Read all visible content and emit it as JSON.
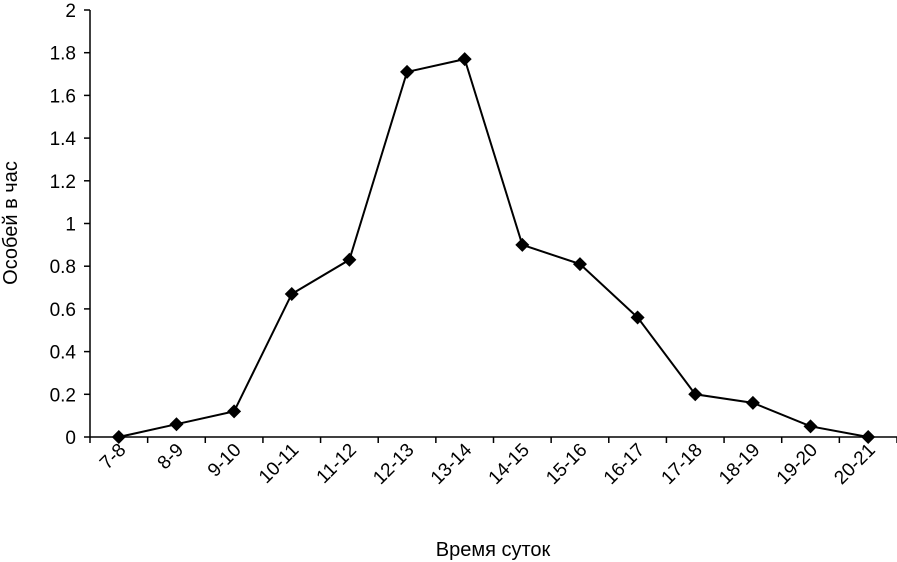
{
  "chart_data": {
    "type": "line",
    "title": "",
    "xlabel": "Время суток",
    "ylabel": "Особей в час",
    "ylim": [
      0,
      2
    ],
    "yticks": [
      "0",
      "0.2",
      "0.4",
      "0.6",
      "0.8",
      "1",
      "1.2",
      "1.4",
      "1.6",
      "1.8",
      "2"
    ],
    "grid": false,
    "legend": "none",
    "categories": [
      "7-8",
      "8-9",
      "9-10",
      "10-11",
      "11-12",
      "12-13",
      "13-14",
      "14-15",
      "15-16",
      "16-17",
      "17-18",
      "18-19",
      "19-20",
      "20-21"
    ],
    "series": [
      {
        "values": [
          0,
          0.06,
          0.12,
          0.67,
          0.83,
          1.71,
          1.77,
          0.9,
          0.81,
          0.56,
          0.2,
          0.16,
          0.05,
          0
        ],
        "color": "#000000",
        "marker": "diamond"
      }
    ]
  }
}
